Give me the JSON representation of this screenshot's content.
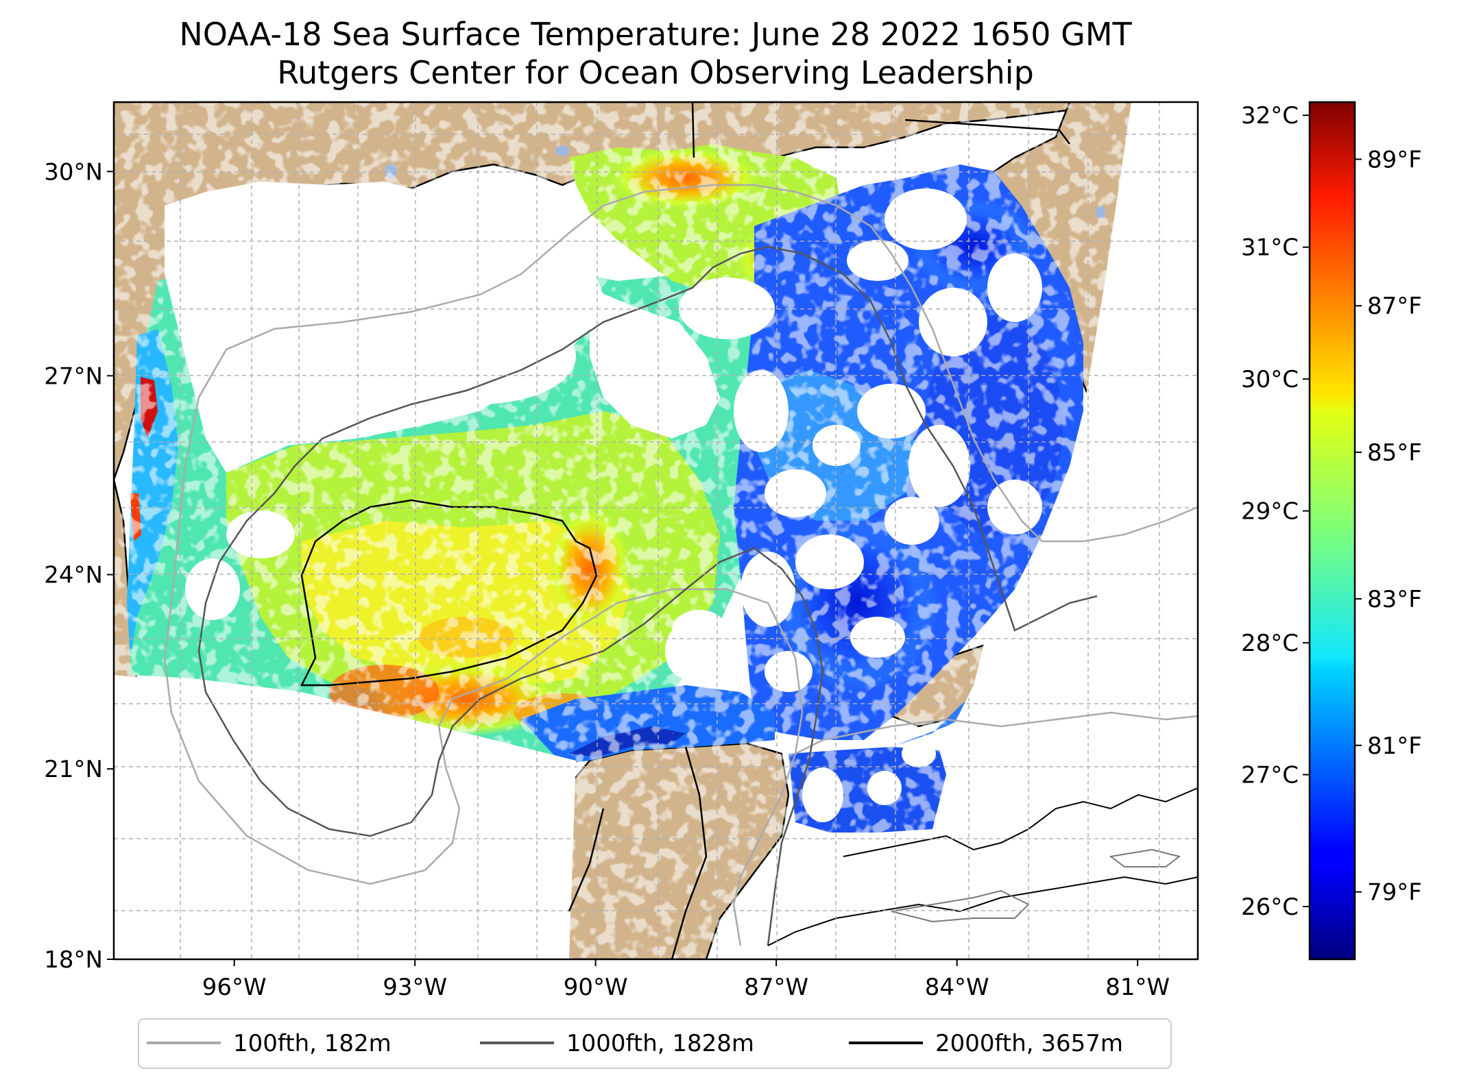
{
  "title_line1": "NOAA-18 Sea Surface Temperature: June 28 2022 1650 GMT",
  "title_line2": "Rutgers Center for Ocean Observing Leadership",
  "map": {
    "lon_range": [
      -98.0,
      -80.0
    ],
    "lat_range": [
      18.0,
      31.0
    ],
    "lat_ticks": [
      {
        "value": 18,
        "label": "18°N"
      },
      {
        "value": 21,
        "label": "21°N"
      },
      {
        "value": 24,
        "label": "24°N"
      },
      {
        "value": 27,
        "label": "27°N"
      },
      {
        "value": 30,
        "label": "30°N"
      }
    ],
    "lon_ticks": [
      {
        "value": -96,
        "label": "96°W"
      },
      {
        "value": -93,
        "label": "93°W"
      },
      {
        "value": -90,
        "label": "90°W"
      },
      {
        "value": -87,
        "label": "87°W"
      },
      {
        "value": -84,
        "label": "84°W"
      },
      {
        "value": -81,
        "label": "81°W"
      }
    ],
    "gridlines": true,
    "land_color": "#d2b48c",
    "lake_color": "#9fb7e0"
  },
  "colorbar": {
    "celsius_range": [
      25.6,
      32.1
    ],
    "colormap": "jet",
    "celsius_ticks": [
      {
        "value": 26,
        "label": "26°C"
      },
      {
        "value": 27,
        "label": "27°C"
      },
      {
        "value": 28,
        "label": "28°C"
      },
      {
        "value": 29,
        "label": "29°C"
      },
      {
        "value": 30,
        "label": "30°C"
      },
      {
        "value": 31,
        "label": "31°C"
      },
      {
        "value": 32,
        "label": "32°C"
      }
    ],
    "fahrenheit_ticks": [
      {
        "value": 79,
        "label": "79°F"
      },
      {
        "value": 81,
        "label": "81°F"
      },
      {
        "value": 83,
        "label": "83°F"
      },
      {
        "value": 85,
        "label": "85°F"
      },
      {
        "value": 87,
        "label": "87°F"
      },
      {
        "value": 89,
        "label": "89°F"
      }
    ]
  },
  "legend": {
    "placement": "bottom-center",
    "items": [
      {
        "label": "100fth, 182m",
        "color": "#aaaaaa"
      },
      {
        "label": "1000fth, 1828m",
        "color": "#555555"
      },
      {
        "label": "2000fth, 3657m",
        "color": "#000000"
      }
    ]
  }
}
